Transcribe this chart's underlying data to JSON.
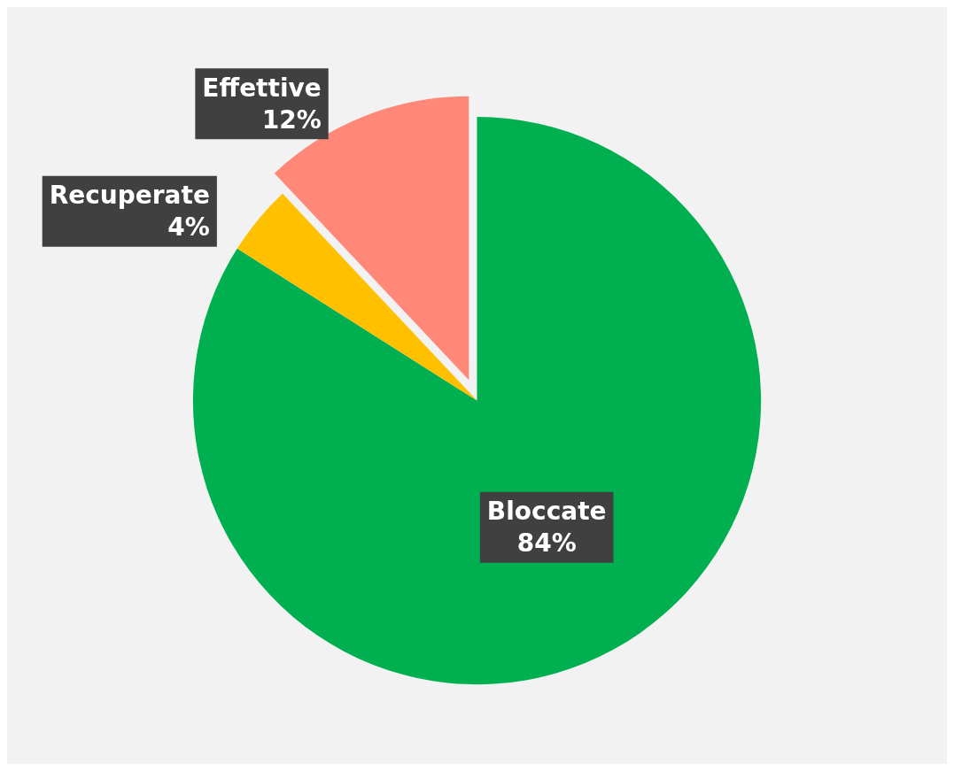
{
  "chart_data": {
    "type": "pie",
    "categories": [
      "Bloccate",
      "Recuperate",
      "Effettive"
    ],
    "values": [
      84,
      4,
      12
    ],
    "value_labels": [
      "84%",
      "4%",
      "12%"
    ],
    "colors": [
      "#00b050",
      "#ffc000",
      "#ff8878"
    ]
  }
}
